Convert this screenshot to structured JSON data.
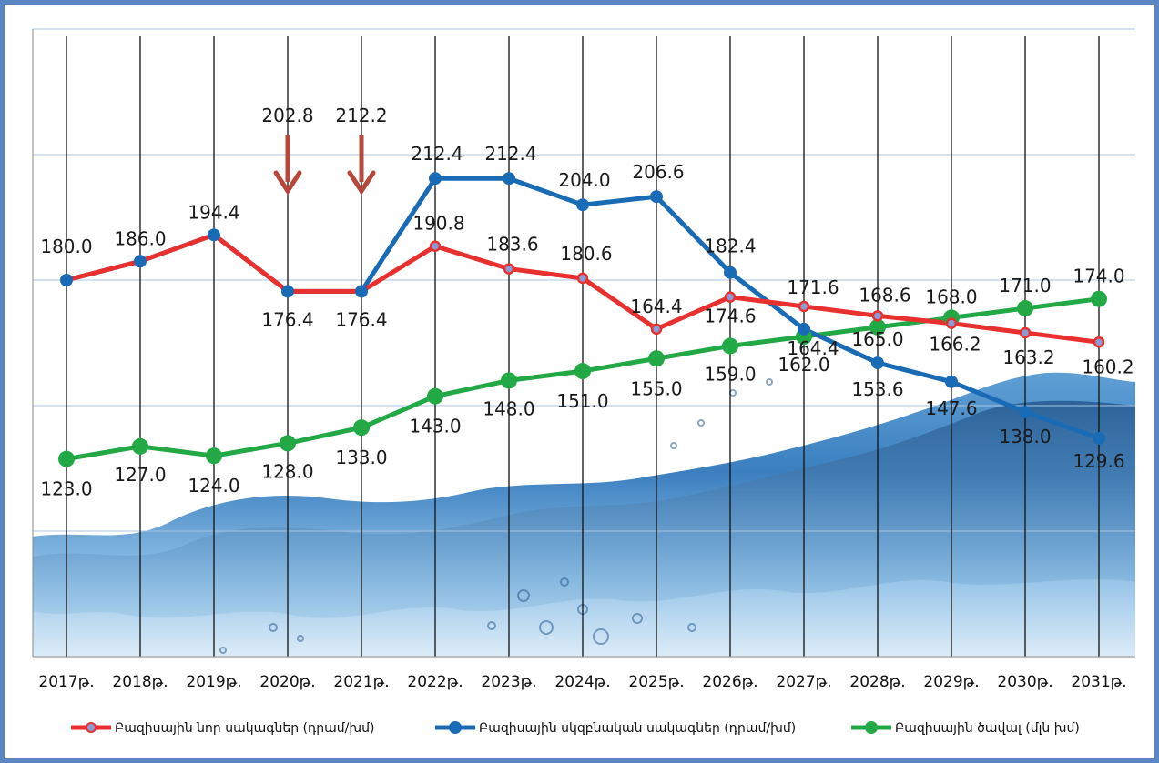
{
  "chart_data": {
    "type": "line",
    "title": "",
    "xlabel": "",
    "ylabel": "",
    "x": [
      "2017թ.",
      "2018թ.",
      "2019թ.",
      "2020թ.",
      "2021թ.",
      "2022թ.",
      "2023թ.",
      "2024թ.",
      "2025թ.",
      "2026թ.",
      "2027թ.",
      "2028թ.",
      "2029թ.",
      "2030թ.",
      "2031թ."
    ],
    "ylim": [
      60,
      260
    ],
    "grid": true,
    "legend_position": "bottom",
    "series": [
      {
        "name": "Բազիսային նոր սակագներ (դրամ/խմ)",
        "color": "#e8312f",
        "values": [
          180.0,
          186.0,
          194.4,
          176.4,
          176.4,
          190.8,
          183.6,
          180.6,
          164.4,
          174.6,
          171.6,
          168.6,
          166.2,
          163.2,
          160.2
        ],
        "labels": [
          "",
          "",
          "",
          "",
          "",
          "190.8",
          "183.6",
          "180.6",
          "164.4",
          "174.6",
          "171.6",
          "168.6",
          "166.2",
          "163.2",
          "160.2"
        ]
      },
      {
        "name": "Բազիսային սկզբնական սակագներ (դրամ/խմ)",
        "color": "#1a6bb5",
        "values": [
          180.0,
          186.0,
          194.4,
          176.4,
          176.4,
          212.4,
          212.4,
          204.0,
          206.6,
          182.4,
          164.4,
          153.6,
          147.6,
          138.0,
          129.6
        ],
        "labels": [
          "180.0",
          "186.0",
          "194.4",
          "176.4",
          "176.4",
          "212.4",
          "212.4",
          "204.0",
          "206.6",
          "182.4",
          "164.4",
          "153.6",
          "147.6",
          "138.0",
          "129.6"
        ]
      },
      {
        "name": "Բազիսային ծավալ (մլն խմ)",
        "color": "#22a845",
        "values": [
          123.0,
          127.0,
          124.0,
          128.0,
          133.0,
          143.0,
          148.0,
          151.0,
          155.0,
          159.0,
          162.0,
          165.0,
          168.0,
          171.0,
          174.0
        ],
        "labels": [
          "123.0",
          "127.0",
          "124.0",
          "128.0",
          "133.0",
          "143.0",
          "148.0",
          "151.0",
          "155.0",
          "159.0",
          "162.0",
          "165.0",
          "168.0",
          "171.0",
          "174.0"
        ]
      }
    ],
    "annotations": [
      {
        "x_index": 3,
        "value": 202.8,
        "label": "202.8",
        "marker": "down-arrow",
        "color": "#b5473b"
      },
      {
        "x_index": 4,
        "value": 212.2,
        "label": "212.2",
        "marker": "down-arrow",
        "color": "#b5473b"
      }
    ]
  }
}
